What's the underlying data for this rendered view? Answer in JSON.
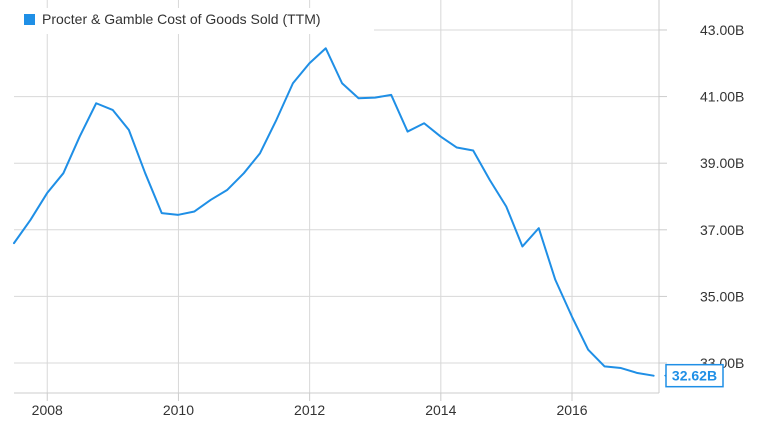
{
  "chart_data": {
    "type": "line",
    "title": "",
    "xlabel": "",
    "ylabel": "",
    "legend": {
      "placement": "top-left",
      "marker_color": "#1f8fe6"
    },
    "series": [
      {
        "name": "Procter & Gamble Cost of Goods Sold (TTM)",
        "color": "#1f8fe6",
        "x": [
          "2007-06-30",
          "2007-09-30",
          "2007-12-31",
          "2008-03-31",
          "2008-06-30",
          "2008-09-30",
          "2008-12-31",
          "2009-03-31",
          "2009-06-30",
          "2009-09-30",
          "2009-12-31",
          "2010-03-31",
          "2010-06-30",
          "2010-09-30",
          "2010-12-31",
          "2011-03-31",
          "2011-06-30",
          "2011-09-30",
          "2011-12-31",
          "2012-03-31",
          "2012-06-30",
          "2012-09-30",
          "2012-12-31",
          "2013-03-31",
          "2013-06-30",
          "2013-09-30",
          "2013-12-31",
          "2014-03-31",
          "2014-06-30",
          "2014-09-30",
          "2014-12-31",
          "2015-03-31",
          "2015-06-30",
          "2015-09-30",
          "2015-12-31",
          "2016-03-31",
          "2016-06-30",
          "2016-09-30",
          "2016-12-31",
          "2017-03-31"
        ],
        "values": [
          36.6,
          37.3,
          38.1,
          38.7,
          39.8,
          40.8,
          40.6,
          40.0,
          38.7,
          37.5,
          37.45,
          37.55,
          37.9,
          38.2,
          38.7,
          39.3,
          40.3,
          41.4,
          42.0,
          42.45,
          41.4,
          40.95,
          40.97,
          41.05,
          39.95,
          40.2,
          39.8,
          39.47,
          39.38,
          38.5,
          37.7,
          36.5,
          37.05,
          35.5,
          34.4,
          33.4,
          32.9,
          32.85,
          32.7,
          32.62
        ]
      }
    ],
    "x_ticks": [
      "2008",
      "2010",
      "2012",
      "2014",
      "2016"
    ],
    "y_ticks": [
      {
        "value": 33,
        "label": "33.00B"
      },
      {
        "value": 35,
        "label": "35.00B"
      },
      {
        "value": 37,
        "label": "37.00B"
      },
      {
        "value": 39,
        "label": "39.00B"
      },
      {
        "value": 41,
        "label": "41.00B"
      },
      {
        "value": 43,
        "label": "43.00B"
      }
    ],
    "last_value_label": "32.62B",
    "xlim": [
      "2007-06-30",
      "2017-04-30"
    ],
    "ylim": [
      32.1,
      43.9
    ],
    "grid": true,
    "y_axis_side": "right"
  }
}
